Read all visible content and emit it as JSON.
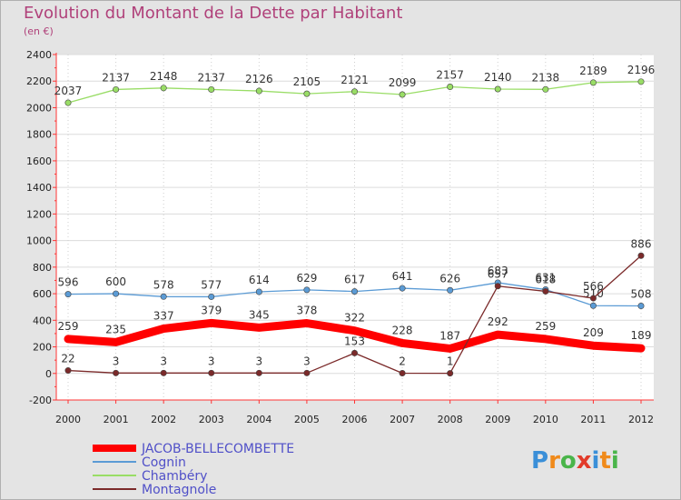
{
  "title": "Evolution du Montant de la Dette par Habitant",
  "subtitle": "(en €)",
  "logo": {
    "letters": [
      "P",
      "r",
      "o",
      "x",
      "i",
      "t",
      "i"
    ],
    "colors": [
      "#3a8fd8",
      "#f08a1a",
      "#4ab54a",
      "#e23b2a",
      "#3a8fd8",
      "#f08a1a",
      "#4ab54a"
    ]
  },
  "chart_data": {
    "type": "line",
    "categories": [
      "2000",
      "2001",
      "2002",
      "2003",
      "2004",
      "2005",
      "2006",
      "2007",
      "2008",
      "2009",
      "2010",
      "2011",
      "2012"
    ],
    "ylim": [
      -200,
      2400
    ],
    "yticks": [
      -200,
      0,
      200,
      400,
      600,
      800,
      1000,
      1200,
      1400,
      1600,
      1800,
      2000,
      2200,
      2400
    ],
    "series": [
      {
        "name": "JACOB-BELLECOMBETTE",
        "color": "#ff0000",
        "values": [
          259,
          235,
          337,
          379,
          345,
          378,
          322,
          228,
          187,
          292,
          259,
          209,
          189
        ],
        "labels": [
          "259",
          "235",
          "337",
          "379",
          "345",
          "378",
          "322",
          "228",
          "187",
          "292",
          "259",
          "209",
          "189"
        ]
      },
      {
        "name": "Cognin",
        "color": "#5b9bd5",
        "values": [
          596,
          600,
          578,
          577,
          614,
          629,
          617,
          641,
          626,
          683,
          631,
          510,
          508
        ],
        "labels": [
          "596",
          "600",
          "578",
          "577",
          "614",
          "629",
          "617",
          "641",
          "626",
          "683",
          "631",
          "510",
          "508"
        ]
      },
      {
        "name": "Chambéry",
        "color": "#99dd66",
        "values": [
          2037,
          2137,
          2148,
          2137,
          2126,
          2105,
          2121,
          2099,
          2157,
          2140,
          2138,
          2189,
          2196
        ],
        "labels": [
          "2037",
          "2137",
          "2148",
          "2137",
          "2126",
          "2105",
          "2121",
          "2099",
          "2157",
          "2140",
          "2138",
          "2189",
          "2196"
        ]
      },
      {
        "name": "Montagnole",
        "color": "#7b2a2a",
        "values": [
          22,
          3,
          3,
          3,
          3,
          3,
          153,
          2,
          1,
          657,
          618,
          566,
          886
        ],
        "labels": [
          "22",
          "3",
          "3",
          "3",
          "3",
          "3",
          "153",
          "2",
          "1",
          "657",
          "618",
          "566",
          "886"
        ]
      }
    ]
  }
}
